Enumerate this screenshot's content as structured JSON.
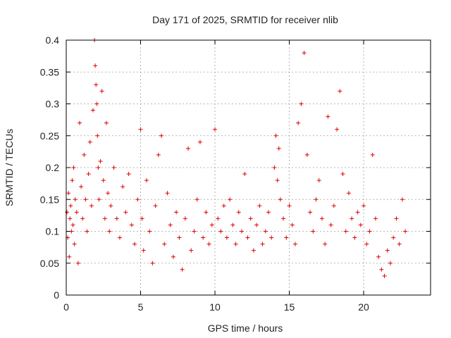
{
  "chart_data": {
    "type": "scatter",
    "title": "Day 171 of 2025, SRMTID for receiver nlib",
    "xlabel": "GPS time / hours",
    "ylabel": "SRMTID / TECUs",
    "xlim": [
      0,
      24.5
    ],
    "ylim": [
      0,
      0.4
    ],
    "xticks": [
      0,
      5,
      10,
      15,
      20
    ],
    "xtick_labels": [
      "0",
      "5",
      "10",
      "15",
      "20"
    ],
    "yticks": [
      0,
      0.05,
      0.1,
      0.15,
      0.2,
      0.25,
      0.3,
      0.35,
      0.4
    ],
    "ytick_labels": [
      "0",
      "0.05",
      "0.1",
      "0.15",
      "0.2",
      "0.25",
      "0.3",
      "0.35",
      "0.4"
    ],
    "grid": true,
    "marker": "+",
    "color": "#e00000",
    "series": [
      {
        "name": "SRMTID",
        "x": [
          0.05,
          0.1,
          0.15,
          0.2,
          0.25,
          0.3,
          0.35,
          0.4,
          0.45,
          0.5,
          0.55,
          0.6,
          0.7,
          0.8,
          0.9,
          1.0,
          1.1,
          1.2,
          1.3,
          1.4,
          1.5,
          1.6,
          1.7,
          1.8,
          1.9,
          1.95,
          2.0,
          2.05,
          2.1,
          2.15,
          2.2,
          2.3,
          2.4,
          2.5,
          2.6,
          2.7,
          2.8,
          2.9,
          3.0,
          3.2,
          3.4,
          3.6,
          3.8,
          4.0,
          4.2,
          4.4,
          4.6,
          4.8,
          5.0,
          5.1,
          5.2,
          5.4,
          5.6,
          5.8,
          6.0,
          6.2,
          6.4,
          6.6,
          6.8,
          7.0,
          7.2,
          7.4,
          7.6,
          7.8,
          8.0,
          8.2,
          8.4,
          8.6,
          8.8,
          9.0,
          9.2,
          9.4,
          9.6,
          9.8,
          10.0,
          10.2,
          10.4,
          10.6,
          10.8,
          11.0,
          11.2,
          11.4,
          11.6,
          11.8,
          12.0,
          12.2,
          12.4,
          12.6,
          12.8,
          13.0,
          13.2,
          13.4,
          13.6,
          13.8,
          14.0,
          14.1,
          14.2,
          14.3,
          14.4,
          14.6,
          14.8,
          15.0,
          15.2,
          15.4,
          15.6,
          15.8,
          16.0,
          16.2,
          16.4,
          16.6,
          16.8,
          17.0,
          17.2,
          17.4,
          17.6,
          17.8,
          18.0,
          18.2,
          18.4,
          18.6,
          18.8,
          19.0,
          19.2,
          19.4,
          19.6,
          19.8,
          20.0,
          20.2,
          20.4,
          20.6,
          20.8,
          21.0,
          21.2,
          21.4,
          21.6,
          21.8,
          22.0,
          22.2,
          22.4,
          22.6,
          22.8
        ],
        "y": [
          0.13,
          0.09,
          0.16,
          0.06,
          0.12,
          0.14,
          0.1,
          0.18,
          0.11,
          0.2,
          0.08,
          0.15,
          0.13,
          0.05,
          0.27,
          0.17,
          0.12,
          0.22,
          0.15,
          0.1,
          0.19,
          0.24,
          0.14,
          0.29,
          0.4,
          0.36,
          0.33,
          0.3,
          0.25,
          0.2,
          0.15,
          0.21,
          0.32,
          0.18,
          0.12,
          0.27,
          0.16,
          0.1,
          0.14,
          0.2,
          0.12,
          0.09,
          0.17,
          0.13,
          0.19,
          0.11,
          0.08,
          0.15,
          0.26,
          0.12,
          0.07,
          0.18,
          0.1,
          0.05,
          0.14,
          0.22,
          0.25,
          0.08,
          0.16,
          0.11,
          0.06,
          0.13,
          0.09,
          0.04,
          0.12,
          0.23,
          0.07,
          0.1,
          0.15,
          0.24,
          0.09,
          0.13,
          0.08,
          0.11,
          0.26,
          0.12,
          0.1,
          0.14,
          0.09,
          0.15,
          0.11,
          0.08,
          0.13,
          0.1,
          0.19,
          0.09,
          0.12,
          0.07,
          0.11,
          0.14,
          0.08,
          0.1,
          0.13,
          0.09,
          0.2,
          0.25,
          0.18,
          0.23,
          0.15,
          0.12,
          0.09,
          0.14,
          0.11,
          0.08,
          0.27,
          0.3,
          0.38,
          0.22,
          0.13,
          0.1,
          0.15,
          0.18,
          0.12,
          0.08,
          0.28,
          0.11,
          0.14,
          0.26,
          0.32,
          0.19,
          0.1,
          0.16,
          0.12,
          0.09,
          0.13,
          0.11,
          0.14,
          0.08,
          0.1,
          0.22,
          0.12,
          0.06,
          0.04,
          0.03,
          0.07,
          0.05,
          0.09,
          0.12,
          0.08,
          0.15,
          0.1
        ]
      }
    ]
  }
}
